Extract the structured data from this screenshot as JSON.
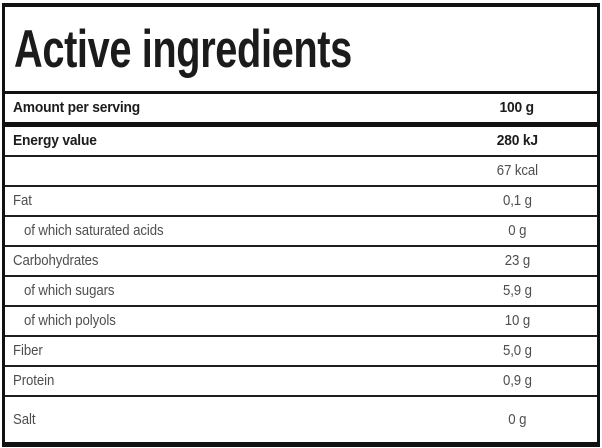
{
  "title": "Active ingredients",
  "table": {
    "header": {
      "label": "Amount per serving",
      "value": "100 g"
    },
    "rows": [
      {
        "label": "Energy value",
        "value": "280 kJ",
        "bold": true,
        "indent": false
      },
      {
        "label": "",
        "value": "67 kcal",
        "bold": false,
        "indent": false
      },
      {
        "label": "Fat",
        "value": "0,1 g",
        "bold": false,
        "indent": false
      },
      {
        "label": "of which saturated acids",
        "value": "0 g",
        "bold": false,
        "indent": true
      },
      {
        "label": "Carbohydrates",
        "value": "23 g",
        "bold": false,
        "indent": false
      },
      {
        "label": "of which sugars",
        "value": "5,9 g",
        "bold": false,
        "indent": true
      },
      {
        "label": "of which polyols",
        "value": "10 g",
        "bold": false,
        "indent": true
      },
      {
        "label": "Fiber",
        "value": "5,0 g",
        "bold": false,
        "indent": false
      },
      {
        "label": "Protein",
        "value": "0,9 g",
        "bold": false,
        "indent": false
      },
      {
        "label": "Salt",
        "value": "0 g",
        "bold": false,
        "indent": false
      }
    ]
  },
  "colors": {
    "frame": "#111111",
    "thin_border": "#1f1f1f",
    "text_dark": "#1c1c1c",
    "text_gray": "#4e4e50",
    "background": "#ffffff"
  }
}
